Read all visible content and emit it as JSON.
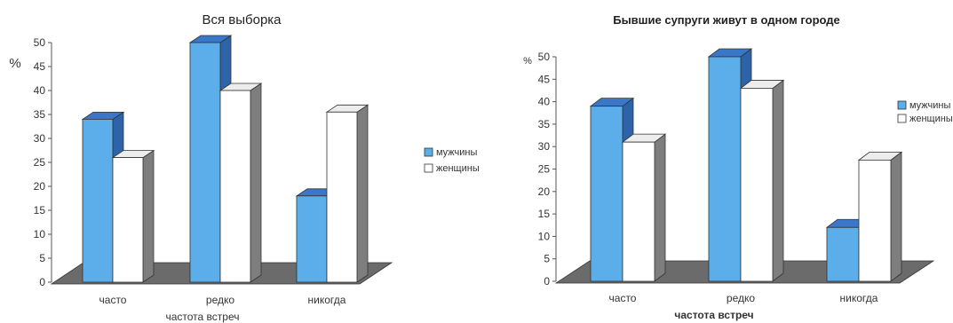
{
  "chart_data": [
    {
      "type": "bar",
      "title": "Вся выборка",
      "ylabel": "%",
      "xlabel": "частота встреч",
      "categories": [
        "часто",
        "редко",
        "никогда"
      ],
      "ylim": [
        0,
        50
      ],
      "yticks": [
        0,
        5,
        10,
        15,
        20,
        25,
        30,
        35,
        40,
        45,
        50
      ],
      "series": [
        {
          "name": "мужчины",
          "values": [
            34,
            50,
            18
          ]
        },
        {
          "name": "женщины",
          "values": [
            26,
            40,
            35.5
          ]
        }
      ],
      "legend_position": "right",
      "three_d": true,
      "colors": {
        "men_front": "#5BAEEA",
        "men_top": "#3A77C8",
        "men_side": "#2D63A8",
        "women_front": "#FFFFFF",
        "women_top": "#EDEDED",
        "women_side": "#7E7E7E",
        "floor": "#6B6B6B",
        "edge": "#333333"
      }
    },
    {
      "type": "bar",
      "title": "Бывшие супруги живут в одном городе",
      "ylabel": "%",
      "xlabel": "частота встреч",
      "categories": [
        "часто",
        "редко",
        "никогда"
      ],
      "ylim": [
        0,
        50
      ],
      "yticks": [
        0,
        5,
        10,
        15,
        20,
        25,
        30,
        35,
        40,
        45,
        50
      ],
      "series": [
        {
          "name": "мужчины",
          "values": [
            39,
            50,
            12
          ]
        },
        {
          "name": "женщины",
          "values": [
            31,
            43,
            27
          ]
        }
      ],
      "legend_position": "right",
      "three_d": true,
      "colors": {
        "men_front": "#5BAEEA",
        "men_top": "#3A77C8",
        "men_side": "#2D63A8",
        "women_front": "#FFFFFF",
        "women_top": "#EDEDED",
        "women_side": "#7E7E7E",
        "floor": "#6B6B6B",
        "edge": "#333333"
      }
    }
  ]
}
